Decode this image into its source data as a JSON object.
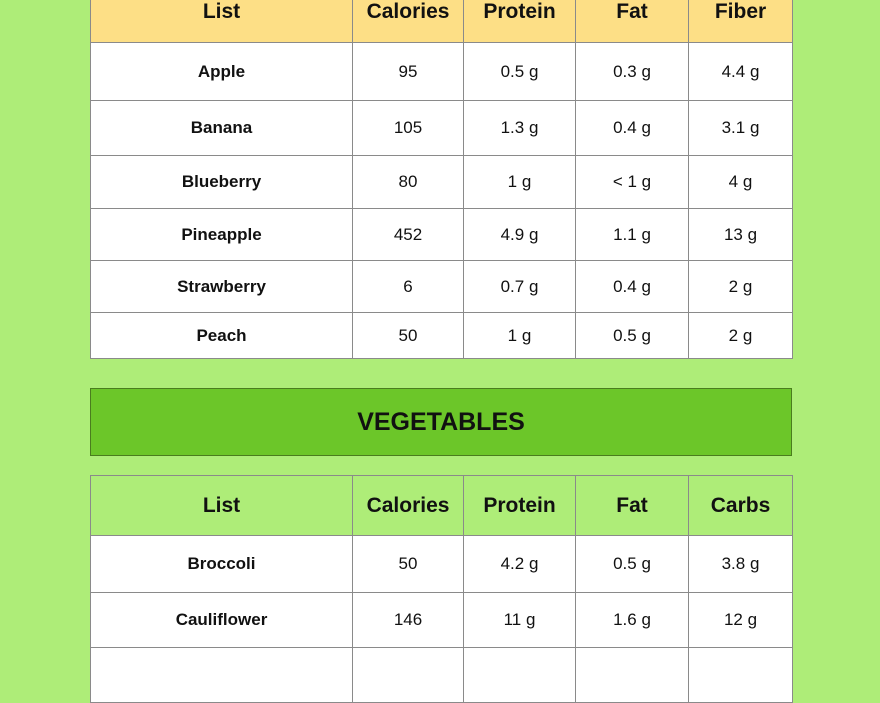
{
  "fruits": {
    "headers": [
      "List",
      "Calories",
      "Protein",
      "Fat",
      "Fiber"
    ],
    "rows": [
      [
        "Apple",
        "95",
        "0.5 g",
        "0.3 g",
        "4.4 g"
      ],
      [
        "Banana",
        "105",
        "1.3 g",
        "0.4 g",
        "3.1 g"
      ],
      [
        "Blueberry",
        "80",
        "1 g",
        "< 1 g",
        "4 g"
      ],
      [
        "Pineapple",
        "452",
        "4.9 g",
        "1.1 g",
        "13 g"
      ],
      [
        "Strawberry",
        "6",
        "0.7 g",
        "0.4 g",
        "2 g"
      ],
      [
        "Peach",
        "50",
        "1 g",
        "0.5 g",
        "2 g"
      ]
    ]
  },
  "vegetables": {
    "title": "VEGETABLES",
    "headers": [
      "List",
      "Calories",
      "Protein",
      "Fat",
      "Carbs"
    ],
    "rows": [
      [
        "Broccoli",
        "50",
        "4.2 g",
        "0.5 g",
        "3.8 g"
      ],
      [
        "Cauliflower",
        "146",
        "11 g",
        "1.6 g",
        "12 g"
      ],
      [
        "",
        "",
        "",
        "",
        ""
      ]
    ]
  },
  "colors": {
    "background": "#aeed78",
    "fruit_header": "#fddf86",
    "veg_banner": "#6cc629"
  }
}
